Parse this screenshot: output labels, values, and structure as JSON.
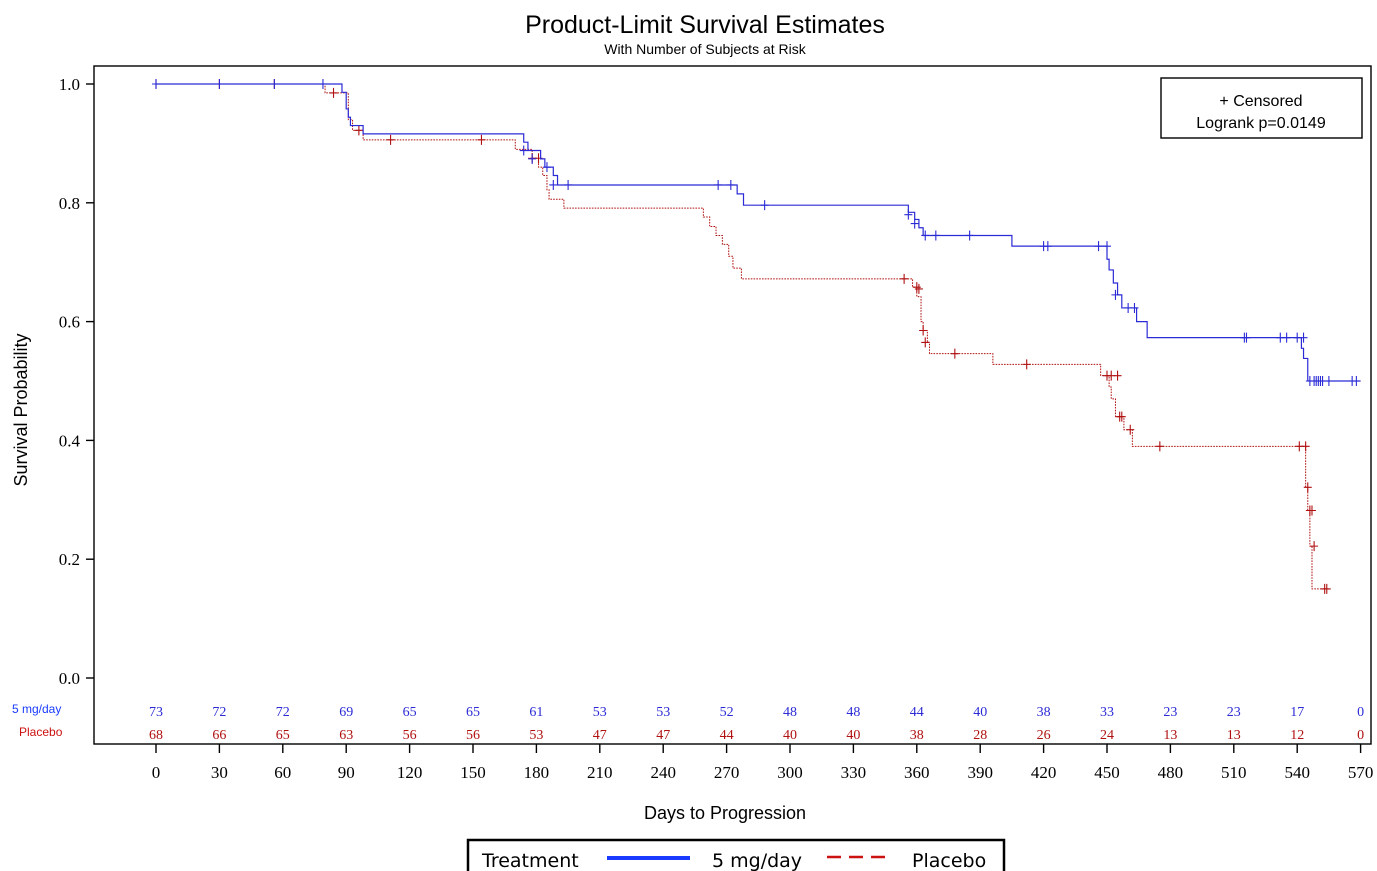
{
  "colors": {
    "treatment": "#2b2bd6",
    "placebo": "#b01010",
    "treatment_legend": "#1a3bff",
    "placebo_legend": "#cc1111"
  },
  "chart_data": {
    "type": "line",
    "title": "Product-Limit Survival Estimates",
    "subtitle": "With Number of Subjects at Risk",
    "xlabel": "Days to Progression",
    "ylabel": "Survival Probability",
    "xlim": [
      -20,
      575
    ],
    "ylim": [
      0,
      1.0
    ],
    "xticks": [
      "0",
      "30",
      "60",
      "90",
      "120",
      "150",
      "180",
      "210",
      "240",
      "270",
      "300",
      "330",
      "360",
      "390",
      "420",
      "450",
      "480",
      "510",
      "540",
      "570"
    ],
    "yticks": [
      "0.0",
      "0.2",
      "0.4",
      "0.6",
      "0.8",
      "1.0"
    ],
    "inset": {
      "line1": "+ Censored",
      "line2": "Logrank p=0.0149"
    },
    "legend": {
      "title": "Treatment",
      "items": [
        "5 mg/day",
        "Placebo"
      ]
    },
    "risk_table": {
      "days": [
        0,
        30,
        60,
        90,
        120,
        150,
        180,
        210,
        240,
        270,
        300,
        330,
        360,
        390,
        420,
        450,
        480,
        510,
        540,
        570
      ],
      "rows": [
        {
          "label": "5 mg/day",
          "values": [
            "73",
            "72",
            "72",
            "69",
            "65",
            "65",
            "61",
            "53",
            "53",
            "52",
            "48",
            "48",
            "44",
            "40",
            "38",
            "33",
            "23",
            "23",
            "17",
            "0"
          ]
        },
        {
          "label": "Placebo",
          "values": [
            "68",
            "66",
            "65",
            "63",
            "56",
            "56",
            "53",
            "47",
            "47",
            "44",
            "40",
            "40",
            "38",
            "28",
            "26",
            "24",
            "13",
            "13",
            "12",
            "0"
          ]
        }
      ]
    },
    "series": [
      {
        "name": "5 mg/day",
        "steps": [
          [
            0,
            1.0
          ],
          [
            88,
            0.986
          ],
          [
            90,
            0.958
          ],
          [
            91,
            0.944
          ],
          [
            92,
            0.93
          ],
          [
            98,
            0.916
          ],
          [
            174,
            0.902
          ],
          [
            176,
            0.888
          ],
          [
            182,
            0.874
          ],
          [
            184,
            0.86
          ],
          [
            188,
            0.846
          ],
          [
            190,
            0.83
          ],
          [
            275,
            0.815
          ],
          [
            278,
            0.796
          ],
          [
            356,
            0.784
          ],
          [
            359,
            0.772
          ],
          [
            361,
            0.758
          ],
          [
            363,
            0.745
          ],
          [
            405,
            0.727
          ],
          [
            450,
            0.705
          ],
          [
            451,
            0.687
          ],
          [
            453,
            0.665
          ],
          [
            455,
            0.645
          ],
          [
            457,
            0.623
          ],
          [
            464,
            0.6
          ],
          [
            469,
            0.573
          ],
          [
            542,
            0.555
          ],
          [
            543,
            0.538
          ],
          [
            545,
            0.5
          ],
          [
            570,
            0.5
          ]
        ],
        "censored": [
          [
            0,
            1.0
          ],
          [
            30,
            1.0
          ],
          [
            56,
            1.0
          ],
          [
            79,
            1.0
          ],
          [
            174,
            0.888
          ],
          [
            178,
            0.874
          ],
          [
            185,
            0.86
          ],
          [
            188,
            0.83
          ],
          [
            195,
            0.83
          ],
          [
            266,
            0.83
          ],
          [
            272,
            0.83
          ],
          [
            288,
            0.796
          ],
          [
            356,
            0.78
          ],
          [
            359,
            0.765
          ],
          [
            364,
            0.745
          ],
          [
            369,
            0.745
          ],
          [
            385,
            0.745
          ],
          [
            420,
            0.727
          ],
          [
            422,
            0.727
          ],
          [
            446,
            0.727
          ],
          [
            450,
            0.727
          ],
          [
            454,
            0.645
          ],
          [
            460,
            0.623
          ],
          [
            463,
            0.623
          ],
          [
            515,
            0.573
          ],
          [
            516,
            0.573
          ],
          [
            532,
            0.573
          ],
          [
            535,
            0.573
          ],
          [
            540,
            0.573
          ],
          [
            543,
            0.573
          ],
          [
            546,
            0.5
          ],
          [
            548,
            0.5
          ],
          [
            549,
            0.5
          ],
          [
            550,
            0.5
          ],
          [
            551,
            0.5
          ],
          [
            552,
            0.5
          ],
          [
            555,
            0.5
          ],
          [
            566,
            0.5
          ],
          [
            568,
            0.5
          ]
        ]
      },
      {
        "name": "Placebo",
        "steps": [
          [
            0,
            1.0
          ],
          [
            80,
            0.985
          ],
          [
            91,
            0.94
          ],
          [
            93,
            0.922
          ],
          [
            98,
            0.906
          ],
          [
            170,
            0.89
          ],
          [
            178,
            0.875
          ],
          [
            181,
            0.86
          ],
          [
            183,
            0.846
          ],
          [
            185,
            0.822
          ],
          [
            186,
            0.806
          ],
          [
            193,
            0.791
          ],
          [
            259,
            0.776
          ],
          [
            262,
            0.76
          ],
          [
            265,
            0.745
          ],
          [
            268,
            0.73
          ],
          [
            271,
            0.71
          ],
          [
            273,
            0.69
          ],
          [
            277,
            0.672
          ],
          [
            358,
            0.658
          ],
          [
            360,
            0.642
          ],
          [
            362,
            0.6
          ],
          [
            363,
            0.585
          ],
          [
            365,
            0.565
          ],
          [
            366,
            0.546
          ],
          [
            396,
            0.528
          ],
          [
            447,
            0.509
          ],
          [
            451,
            0.49
          ],
          [
            452,
            0.47
          ],
          [
            454,
            0.44
          ],
          [
            458,
            0.418
          ],
          [
            462,
            0.39
          ],
          [
            544,
            0.321
          ],
          [
            545,
            0.282
          ],
          [
            546,
            0.222
          ],
          [
            547,
            0.15
          ],
          [
            555,
            0.15
          ]
        ],
        "censored": [
          [
            0,
            1.0
          ],
          [
            30,
            1.0
          ],
          [
            56,
            1.0
          ],
          [
            84,
            0.985
          ],
          [
            96,
            0.922
          ],
          [
            111,
            0.906
          ],
          [
            154,
            0.906
          ],
          [
            178,
            0.875
          ],
          [
            181,
            0.875
          ],
          [
            354,
            0.672
          ],
          [
            360,
            0.658
          ],
          [
            361,
            0.655
          ],
          [
            363,
            0.585
          ],
          [
            364,
            0.565
          ],
          [
            378,
            0.546
          ],
          [
            412,
            0.528
          ],
          [
            450,
            0.509
          ],
          [
            452,
            0.509
          ],
          [
            455,
            0.509
          ],
          [
            456,
            0.44
          ],
          [
            457,
            0.44
          ],
          [
            461,
            0.418
          ],
          [
            475,
            0.39
          ],
          [
            541,
            0.39
          ],
          [
            544,
            0.39
          ],
          [
            545,
            0.321
          ],
          [
            546,
            0.282
          ],
          [
            547,
            0.282
          ],
          [
            548,
            0.222
          ],
          [
            553,
            0.15
          ],
          [
            554,
            0.15
          ]
        ]
      }
    ]
  }
}
